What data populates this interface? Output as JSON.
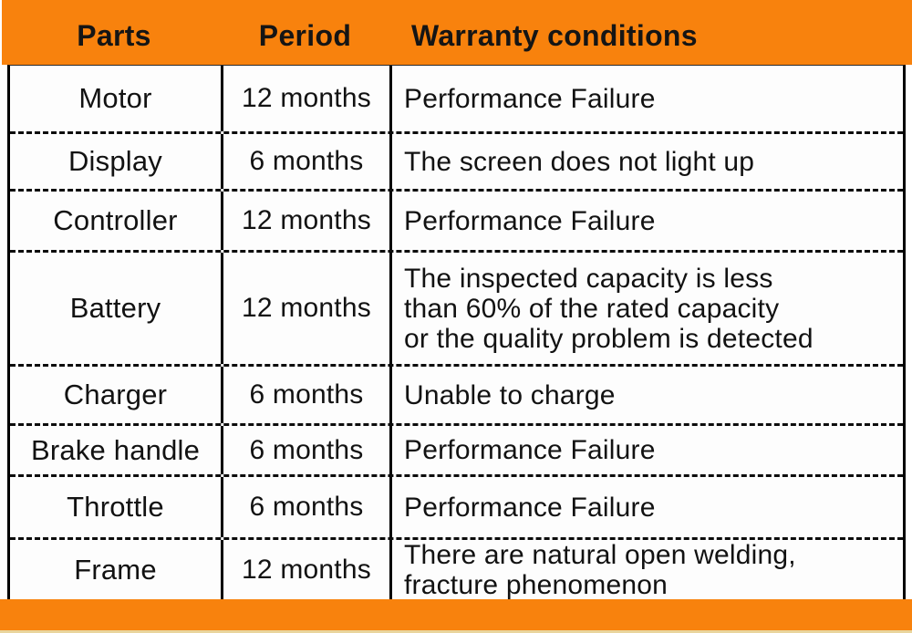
{
  "colors": {
    "accent_orange": "#f8820d",
    "bottom_strip_tan": "#e9d59d",
    "border_black": "#000000",
    "text_black": "#121212",
    "background_white": "#ffffff"
  },
  "chart_data": {
    "type": "table",
    "columns": [
      "Parts",
      "Period",
      "Warranty conditions"
    ],
    "rows": [
      {
        "part": "Motor",
        "period": "12 months",
        "condition": "Performance Failure"
      },
      {
        "part": "Display",
        "period": "6 months",
        "condition": "The screen does not light up"
      },
      {
        "part": "Controller",
        "period": "12 months",
        "condition": "Performance Failure"
      },
      {
        "part": "Battery",
        "period": "12 months",
        "condition": "The inspected capacity is less\nthan 60% of the rated capacity\nor the quality problem is detected"
      },
      {
        "part": "Charger",
        "period": "6 months",
        "condition": "Unable to charge"
      },
      {
        "part": "Brake handle",
        "period": "6 months",
        "condition": "Performance Failure"
      },
      {
        "part": "Throttle",
        "period": "6 months",
        "condition": "Performance Failure"
      },
      {
        "part": "Frame",
        "period": "12 months",
        "condition": "There are natural open welding,\nfracture phenomenon"
      }
    ],
    "layout": {
      "row_separator_style": "dashed",
      "column_separator_style": "solid",
      "header_background": "#f8820d",
      "footer_background": "#f8820d"
    }
  }
}
